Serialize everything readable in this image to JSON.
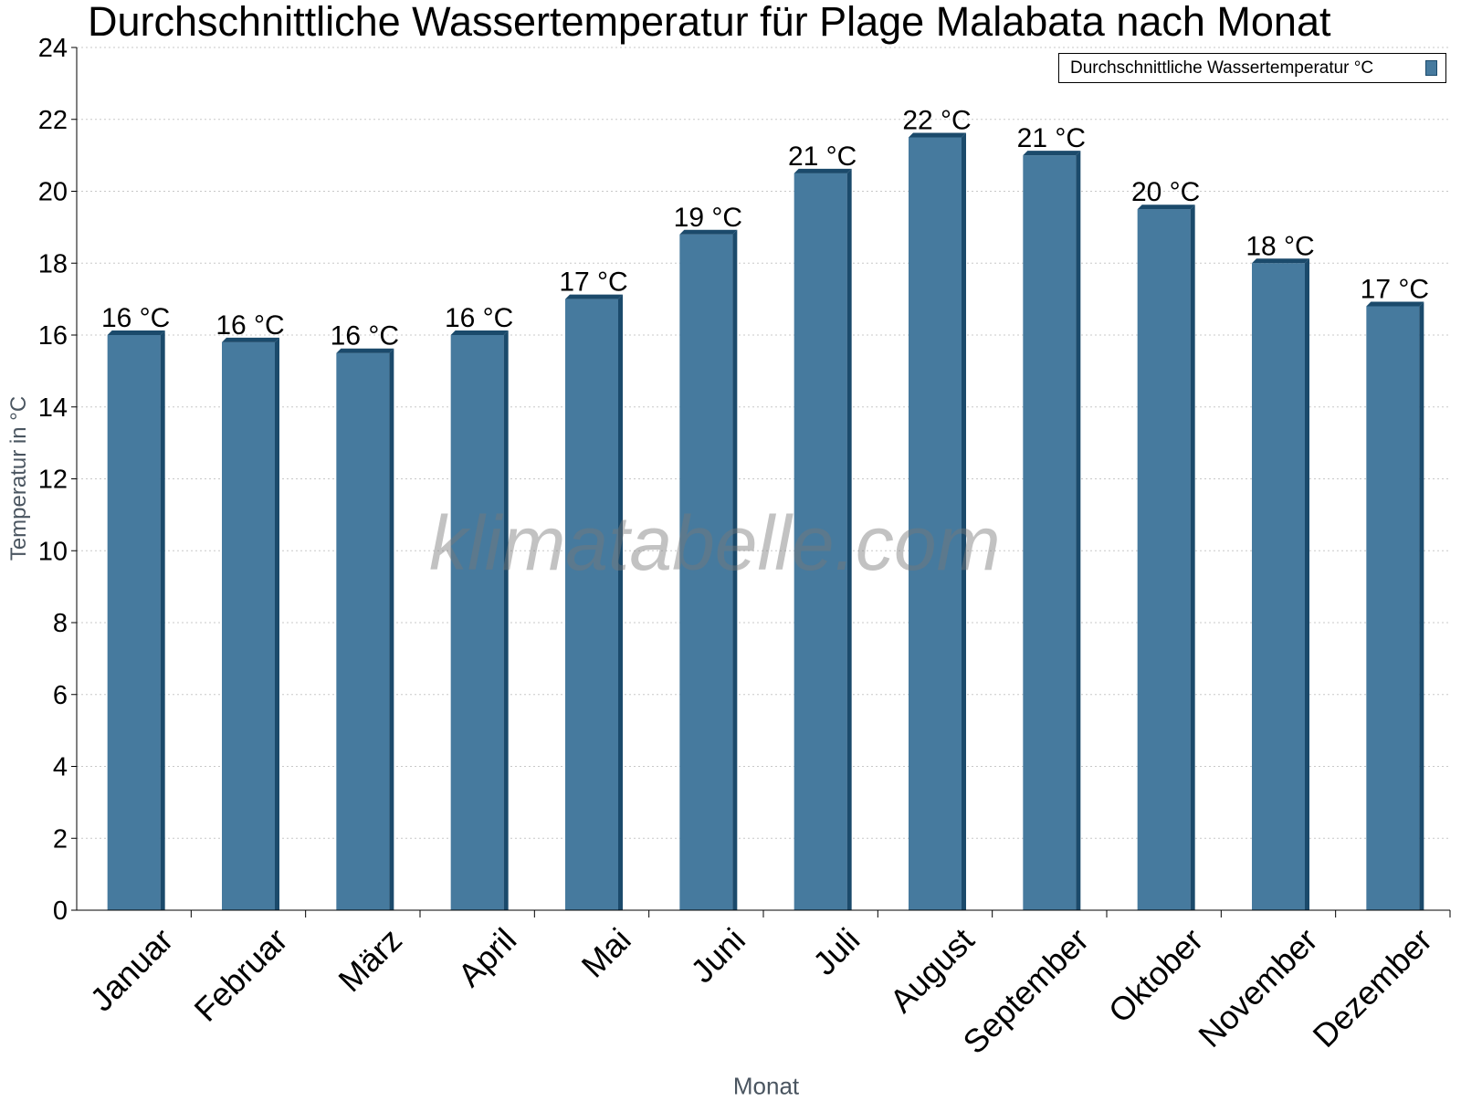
{
  "chart_data": {
    "type": "bar",
    "title": "Durchschnittliche Wassertemperatur für Plage Malabata nach Monat",
    "xlabel": "Monat",
    "ylabel": "Temperatur in °C",
    "ylim": [
      0,
      24
    ],
    "yticks": [
      "0",
      "2",
      "4",
      "6",
      "8",
      "10",
      "12",
      "14",
      "16",
      "18",
      "20",
      "22",
      "24"
    ],
    "grid": true,
    "legend_position": "top-right",
    "categories": [
      "Januar",
      "Februar",
      "März",
      "April",
      "Mai",
      "Juni",
      "Juli",
      "August",
      "September",
      "Oktober",
      "November",
      "Dezember"
    ],
    "series": [
      {
        "name": "Durchschnittliche Wassertemperatur °C",
        "values": [
          16.0,
          15.8,
          15.5,
          16.0,
          17.0,
          18.8,
          20.5,
          21.5,
          21.0,
          19.5,
          18.0,
          16.8
        ],
        "labels": [
          "16 °C",
          "16 °C",
          "16 °C",
          "16 °C",
          "17 °C",
          "19 °C",
          "21 °C",
          "22 °C",
          "21 °C",
          "20 °C",
          "18 °C",
          "17 °C"
        ],
        "color": "#467a9e",
        "edge_color": "#1b4a6b"
      }
    ]
  },
  "watermark": "klimatabelle.com",
  "colors": {
    "bar": "#467a9e",
    "bar_edge": "#1b4a6b",
    "grid": "#c8c8c8",
    "axis": "#000000",
    "axis_label": "#4a5560"
  }
}
